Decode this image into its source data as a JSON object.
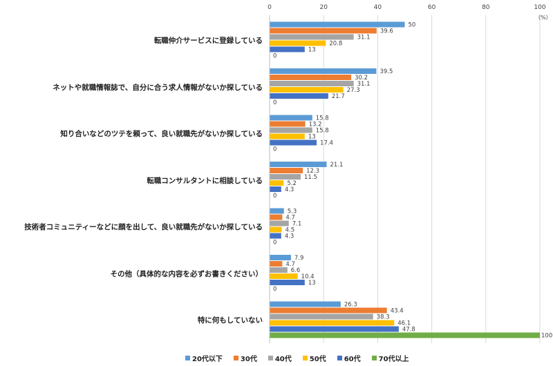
{
  "chart_data": {
    "type": "bar",
    "orientation": "horizontal",
    "unit_label": "（%）",
    "xlim": [
      0,
      100
    ],
    "xticks": [
      0,
      20,
      40,
      60,
      80,
      100
    ],
    "categories": [
      "転職仲介サービスに登録している",
      "ネットや就職情報誌で、自分に合う求人情報がないか探している",
      "知り合いなどのツテを頼って、良い就職先がないか探している",
      "転職コンサルタントに相談している",
      "技術者コミュニティーなどに顔を出して、良い就職先がないか探している",
      "その他（具体的な内容を必ずお書きください）",
      "特に何もしていない"
    ],
    "series": [
      {
        "name": "20代以下",
        "color": "#5b9bd5",
        "values": [
          50,
          39.5,
          15.8,
          21.1,
          5.3,
          7.9,
          26.3
        ]
      },
      {
        "name": "30代",
        "color": "#ed7d31",
        "values": [
          39.6,
          30.2,
          13.2,
          12.3,
          4.7,
          4.7,
          43.4
        ]
      },
      {
        "name": "40代",
        "color": "#a5a5a5",
        "values": [
          31.1,
          31.1,
          15.8,
          11.5,
          7.1,
          6.6,
          38.3
        ]
      },
      {
        "name": "50代",
        "color": "#ffc000",
        "values": [
          20.8,
          27.3,
          13,
          5.2,
          4.5,
          10.4,
          46.1
        ]
      },
      {
        "name": "60代",
        "color": "#4472c4",
        "values": [
          13,
          21.7,
          17.4,
          4.3,
          4.3,
          13,
          47.8
        ]
      },
      {
        "name": "70代以上",
        "color": "#70ad47",
        "values": [
          0,
          0,
          0,
          0,
          0,
          0,
          100
        ]
      }
    ]
  }
}
